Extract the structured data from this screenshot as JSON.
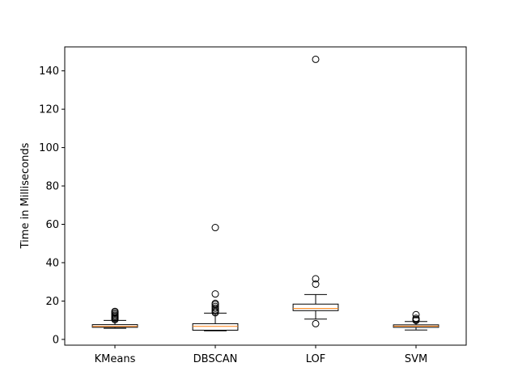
{
  "chart_data": {
    "type": "boxplot",
    "title": "",
    "xlabel": "",
    "ylabel": "Time in Milliseconds",
    "ylim": [
      -3.0,
      152.5
    ],
    "yticks": [
      0,
      20,
      40,
      60,
      80,
      100,
      120,
      140
    ],
    "grid": false,
    "colors": {
      "box": "#000000",
      "median": "#ff7f0e",
      "whisker": "#000000",
      "flier": "#000000"
    },
    "categories": [
      "KMeans",
      "DBSCAN",
      "LOF",
      "SVM"
    ],
    "boxes": [
      {
        "name": "KMeans",
        "whisker_low": 5.8,
        "q1": 6.3,
        "median": 6.8,
        "q3": 7.7,
        "whisker_high": 9.9,
        "fliers": [
          10.3,
          10.9,
          11.4,
          12.0,
          12.6,
          13.3,
          14.0,
          14.6
        ]
      },
      {
        "name": "DBSCAN",
        "whisker_low": 4.5,
        "q1": 4.8,
        "median": 6.8,
        "q3": 8.2,
        "whisker_high": 13.7,
        "fliers": [
          13.9,
          14.6,
          15.4,
          16.3,
          17.2,
          18.2,
          18.8,
          23.7,
          58.3
        ]
      },
      {
        "name": "LOF",
        "whisker_low": 10.6,
        "q1": 15.0,
        "median": 16.1,
        "q3": 18.4,
        "whisker_high": 23.4,
        "fliers": [
          8.2,
          28.8,
          31.6,
          146.0
        ]
      },
      {
        "name": "SVM",
        "whisker_low": 4.9,
        "q1": 6.3,
        "median": 6.9,
        "q3": 7.6,
        "whisker_high": 9.3,
        "fliers": [
          9.9,
          10.4,
          11.0,
          12.9
        ]
      }
    ]
  }
}
